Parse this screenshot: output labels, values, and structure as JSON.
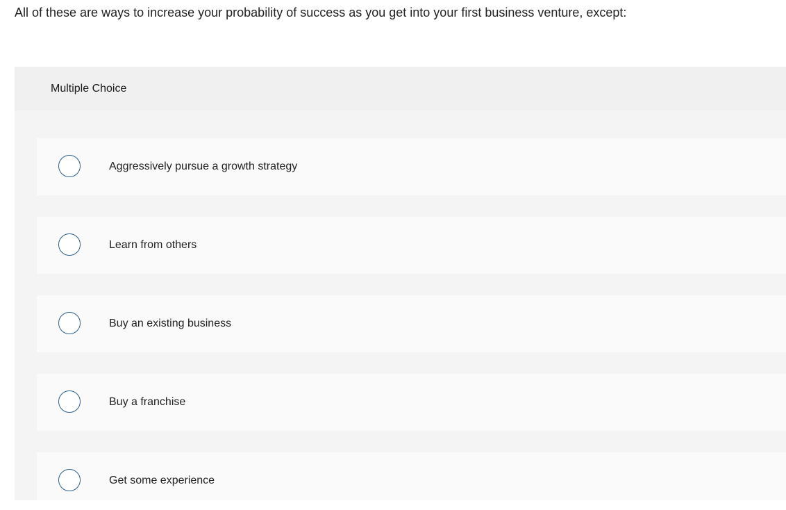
{
  "question": "All of these are ways to increase your probability of success as you get into your first business venture, except:",
  "type_label": "Multiple Choice",
  "options": [
    {
      "label": "Aggressively pursue a growth strategy",
      "selected": false
    },
    {
      "label": "Learn from others",
      "selected": false
    },
    {
      "label": "Buy an existing business",
      "selected": false
    },
    {
      "label": "Buy a franchise",
      "selected": false
    },
    {
      "label": "Get some experience",
      "selected": false
    }
  ]
}
